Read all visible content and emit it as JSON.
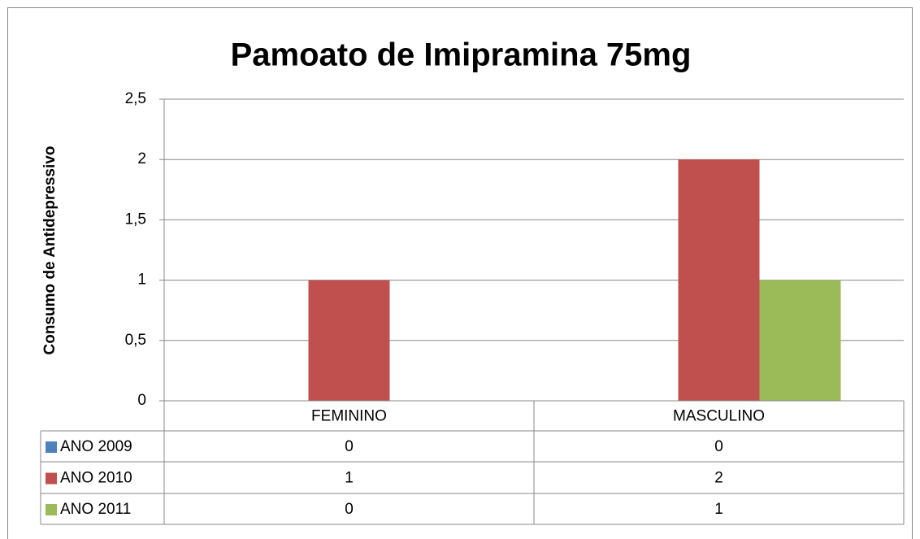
{
  "chart_data": {
    "type": "bar",
    "title": "Pamoato de Imipramina 75mg",
    "y_label": "Consumo de Antidepressivo",
    "categories": [
      "FEMININO",
      "MASCULINO"
    ],
    "series": [
      {
        "name": "ANO 2009",
        "color": "#4f81bd",
        "values": [
          0,
          0
        ]
      },
      {
        "name": "ANO 2010",
        "color": "#c0504d",
        "values": [
          1,
          2
        ]
      },
      {
        "name": "ANO 2011",
        "color": "#9bbb59",
        "values": [
          0,
          1
        ]
      }
    ],
    "ylim": [
      0,
      2.5
    ],
    "yticks": [
      0,
      {
        "value": 0.5,
        "label": "0,5"
      },
      1,
      {
        "value": 1.5,
        "label": "1,5"
      },
      2,
      {
        "value": 2.5,
        "label": "2,5"
      }
    ],
    "grid": true,
    "data_table": true
  }
}
